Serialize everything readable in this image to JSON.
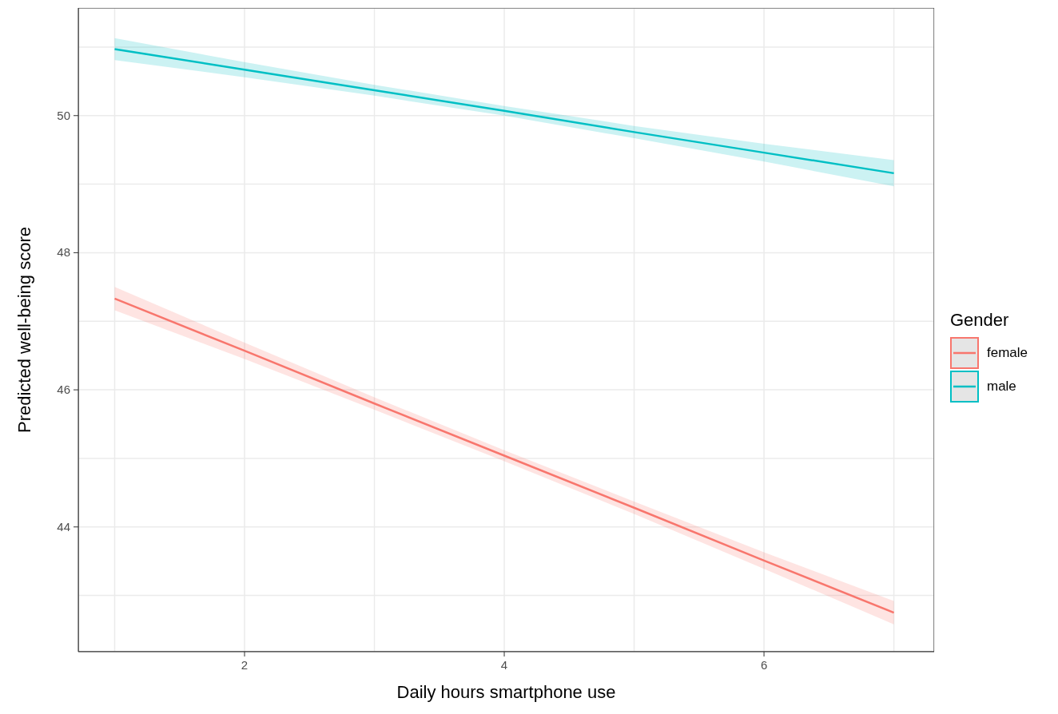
{
  "chart_data": {
    "type": "line",
    "xlabel": "Daily hours smartphone use",
    "ylabel": "Predicted well-being score",
    "legend_title": "Gender",
    "legend": "right",
    "grid": true,
    "marker": "none",
    "line_style": "solid",
    "x": [
      1,
      2,
      3,
      4,
      5,
      6,
      7
    ],
    "xlim": [
      0.72,
      7.31
    ],
    "xticks": [
      {
        "value": 1,
        "label": null
      },
      2,
      {
        "value": 3,
        "label": null
      },
      4,
      {
        "value": 5,
        "label": null
      },
      6,
      {
        "value": 7,
        "label": null
      }
    ],
    "ylim": [
      42.18,
      51.57
    ],
    "yticks": [
      {
        "value": 43,
        "label": null
      },
      44,
      {
        "value": 45,
        "label": null
      },
      46,
      {
        "value": 47,
        "label": null
      },
      48,
      {
        "value": 49,
        "label": null
      },
      50,
      {
        "value": 51,
        "label": null
      }
    ],
    "series": [
      {
        "name": "female",
        "color": "#f8766d",
        "values": [
          47.33,
          46.57,
          45.8,
          45.04,
          44.28,
          43.51,
          42.75
        ],
        "lower": [
          47.16,
          46.45,
          45.71,
          44.96,
          44.19,
          43.39,
          42.58
        ],
        "upper": [
          47.5,
          46.69,
          45.89,
          45.12,
          44.37,
          43.63,
          42.92
        ]
      },
      {
        "name": "male",
        "color": "#00bfc4",
        "values": [
          50.97,
          50.67,
          50.37,
          50.07,
          49.76,
          49.46,
          49.16
        ],
        "lower": [
          50.81,
          50.56,
          50.29,
          50.0,
          49.67,
          49.33,
          48.97
        ],
        "upper": [
          51.13,
          50.78,
          50.45,
          50.14,
          49.85,
          49.59,
          49.35
        ]
      }
    ]
  }
}
